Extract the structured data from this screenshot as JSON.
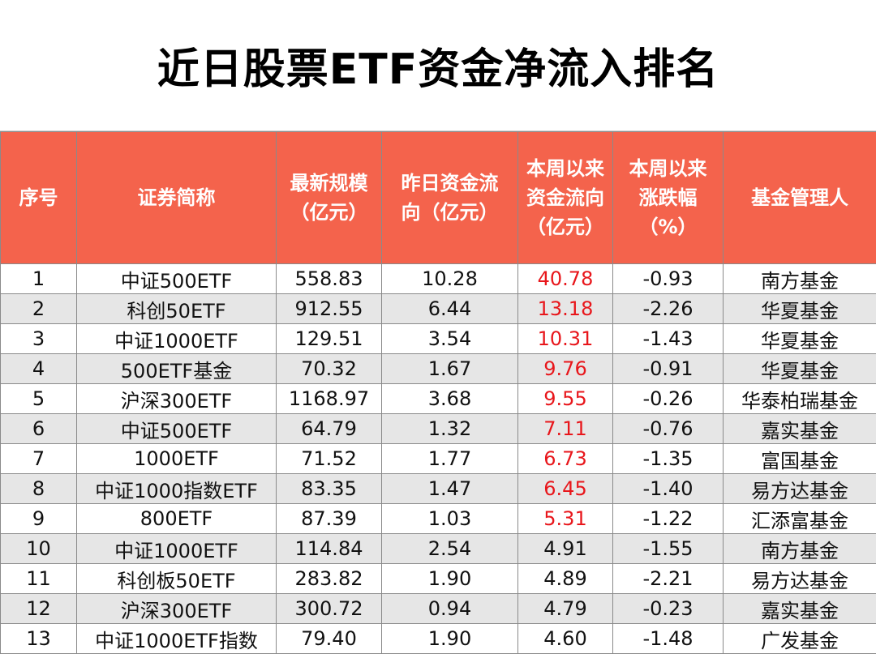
{
  "title": "近日股票ETF资金净流入排名",
  "headers": {
    "seq": "序号",
    "name": "证券简称",
    "scale": [
      "最新规模",
      "（亿元）"
    ],
    "yesterday": [
      "昨日资金流",
      "向（亿元）"
    ],
    "week_flow": [
      "本周以来",
      "资金流向",
      "（亿元）"
    ],
    "week_change": [
      "本周以来",
      "涨跌幅",
      "（%）"
    ],
    "manager": "基金管理人"
  },
  "colors": {
    "header_bg": "#f4634c",
    "highlight": "#e8161b",
    "stripe": "#e6e6e6"
  },
  "rows": [
    {
      "seq": "1",
      "name": "中证500ETF",
      "scale": "558.83",
      "yesterday": "10.28",
      "week_flow": "40.78",
      "week_change": "-0.93",
      "manager": "南方基金",
      "highlight": true
    },
    {
      "seq": "2",
      "name": "科创50ETF",
      "scale": "912.55",
      "yesterday": "6.44",
      "week_flow": "13.18",
      "week_change": "-2.26",
      "manager": "华夏基金",
      "highlight": true
    },
    {
      "seq": "3",
      "name": "中证1000ETF",
      "scale": "129.51",
      "yesterday": "3.54",
      "week_flow": "10.31",
      "week_change": "-1.43",
      "manager": "华夏基金",
      "highlight": true
    },
    {
      "seq": "4",
      "name": "500ETF基金",
      "scale": "70.32",
      "yesterday": "1.67",
      "week_flow": "9.76",
      "week_change": "-0.91",
      "manager": "华夏基金",
      "highlight": true
    },
    {
      "seq": "5",
      "name": "沪深300ETF",
      "scale": "1168.97",
      "yesterday": "3.68",
      "week_flow": "9.55",
      "week_change": "-0.26",
      "manager": "华泰柏瑞基金",
      "highlight": true
    },
    {
      "seq": "6",
      "name": "中证500ETF",
      "scale": "64.79",
      "yesterday": "1.32",
      "week_flow": "7.11",
      "week_change": "-0.76",
      "manager": "嘉实基金",
      "highlight": true
    },
    {
      "seq": "7",
      "name": "1000ETF",
      "scale": "71.52",
      "yesterday": "1.77",
      "week_flow": "6.73",
      "week_change": "-1.35",
      "manager": "富国基金",
      "highlight": true
    },
    {
      "seq": "8",
      "name": "中证1000指数ETF",
      "scale": "83.35",
      "yesterday": "1.47",
      "week_flow": "6.45",
      "week_change": "-1.40",
      "manager": "易方达基金",
      "highlight": true
    },
    {
      "seq": "9",
      "name": "800ETF",
      "scale": "87.39",
      "yesterday": "1.03",
      "week_flow": "5.31",
      "week_change": "-1.22",
      "manager": "汇添富基金",
      "highlight": true
    },
    {
      "seq": "10",
      "name": "中证1000ETF",
      "scale": "114.84",
      "yesterday": "2.54",
      "week_flow": "4.91",
      "week_change": "-1.55",
      "manager": "南方基金",
      "highlight": false
    },
    {
      "seq": "11",
      "name": "科创板50ETF",
      "scale": "283.82",
      "yesterday": "1.90",
      "week_flow": "4.89",
      "week_change": "-2.21",
      "manager": "易方达基金",
      "highlight": false
    },
    {
      "seq": "12",
      "name": "沪深300ETF",
      "scale": "300.72",
      "yesterday": "0.94",
      "week_flow": "4.79",
      "week_change": "-0.23",
      "manager": "嘉实基金",
      "highlight": false
    },
    {
      "seq": "13",
      "name": "中证1000ETF指数",
      "scale": "79.40",
      "yesterday": "1.90",
      "week_flow": "4.60",
      "week_change": "-1.48",
      "manager": "广发基金",
      "highlight": false
    }
  ]
}
